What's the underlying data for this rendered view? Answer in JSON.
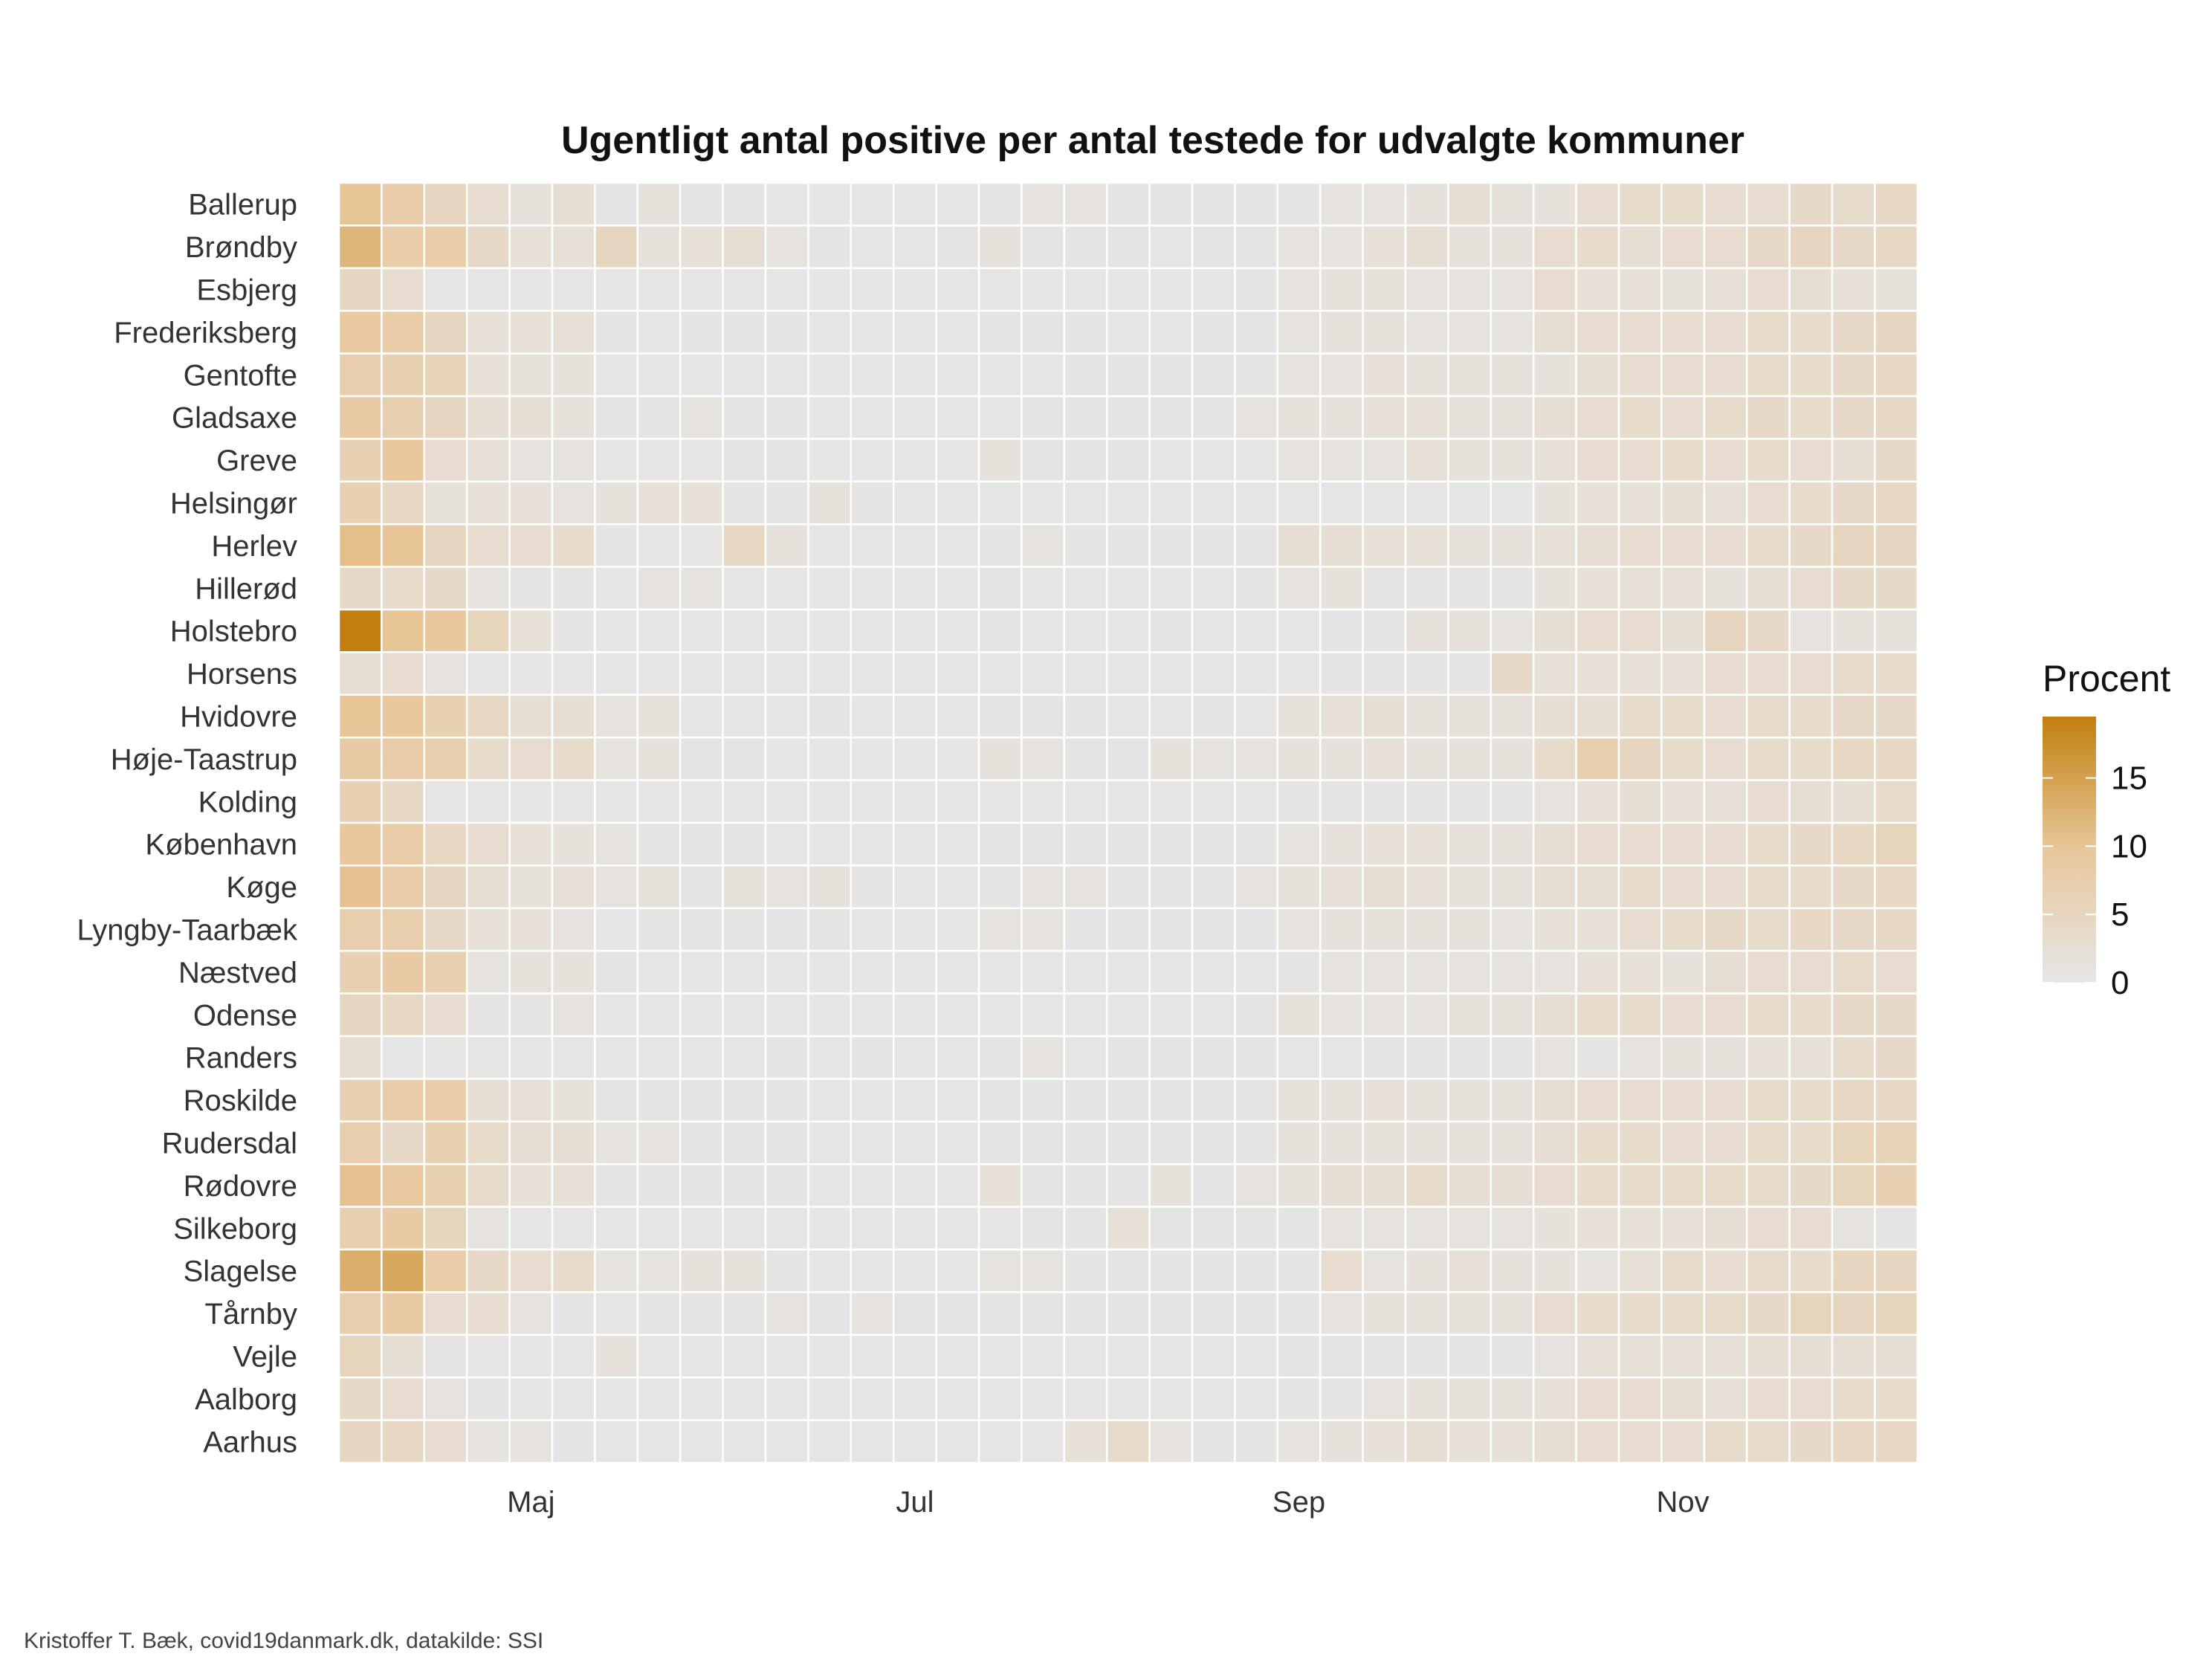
{
  "chart_data": {
    "type": "heatmap",
    "title": "Ugentligt antal positive per antal testede for udvalgte kommuner",
    "caption": "Kristoffer T. Bæk, covid19danmark.dk, datakilde: SSI",
    "x_tick_labels": [
      "Maj",
      "Jul",
      "Sep",
      "Nov"
    ],
    "x_tick_week_index": [
      4,
      13,
      22,
      31
    ],
    "weeks": 37,
    "rows": [
      "Ballerup",
      "Brøndby",
      "Esbjerg",
      "Frederiksberg",
      "Gentofte",
      "Gladsaxe",
      "Greve",
      "Helsingør",
      "Herlev",
      "Hillerød",
      "Holstebro",
      "Horsens",
      "Hvidovre",
      "Høje-Taastrup",
      "Kolding",
      "København",
      "Køge",
      "Lyngby-Taarbæk",
      "Næstved",
      "Odense",
      "Randers",
      "Roskilde",
      "Rudersdal",
      "Rødovre",
      "Silkeborg",
      "Slagelse",
      "Tårnby",
      "Vejle",
      "Aalborg",
      "Aarhus"
    ],
    "legend": {
      "title": "Procent",
      "ticks": [
        "15",
        "10",
        "5",
        "0"
      ],
      "tick_values": [
        15,
        10,
        5,
        0
      ],
      "min": 0,
      "max": 19.5
    },
    "colors": {
      "low": "#e6e6e6",
      "mid": "#e8c79a",
      "high": "#c27f0e",
      "grid": "#ffffff"
    },
    "values": [
      [
        10,
        8,
        5,
        3,
        1.5,
        2.5,
        0.5,
        1.5,
        0.5,
        0.5,
        0.3,
        0.3,
        0.3,
        0.3,
        0.3,
        0.5,
        1,
        1,
        0.5,
        0.5,
        0.5,
        0.5,
        0.5,
        1,
        1,
        1.5,
        2.5,
        1.5,
        1.5,
        3,
        3.5,
        3.5,
        3,
        3,
        4,
        3.5,
        4.5
      ],
      [
        12,
        8,
        8,
        4,
        2,
        2,
        5,
        1.5,
        2,
        2.5,
        1,
        0.5,
        0.3,
        0.3,
        0.5,
        1.5,
        0.5,
        0.5,
        0.5,
        0.3,
        0.5,
        0.5,
        1,
        1,
        2,
        2.5,
        1.5,
        1.5,
        3,
        3.5,
        2.5,
        3,
        3,
        4,
        5,
        4,
        4.5
      ],
      [
        5,
        3,
        0.3,
        0.3,
        0.2,
        0.2,
        0.2,
        0.2,
        0.2,
        0.2,
        0.2,
        0.2,
        0.2,
        0.2,
        0.2,
        0.2,
        0.2,
        0.2,
        0.2,
        0.2,
        0.3,
        0.5,
        1,
        1.5,
        1.5,
        1,
        1,
        1,
        3,
        2,
        2,
        1.5,
        2,
        3,
        2.5,
        2,
        1.5
      ],
      [
        9,
        8,
        5,
        2,
        2,
        2,
        0.5,
        0.3,
        0.5,
        0.5,
        0.5,
        0.3,
        0.3,
        0.3,
        0.3,
        0.5,
        0.5,
        0.5,
        0.3,
        0.3,
        0.5,
        0.5,
        1,
        1.5,
        1.5,
        1,
        1,
        1,
        2.5,
        3,
        3,
        3,
        3,
        3.5,
        3.5,
        4,
        5
      ],
      [
        7.5,
        7,
        6,
        2,
        1.5,
        1.5,
        0.3,
        0.3,
        0.3,
        0.3,
        0.3,
        0.3,
        0.3,
        0.3,
        0.3,
        0.3,
        0.3,
        0.5,
        0.5,
        0.5,
        0.5,
        0.5,
        1,
        1,
        2,
        1.5,
        1.5,
        1.5,
        1.5,
        2.5,
        3,
        3,
        3,
        3.5,
        3.5,
        4,
        4.5
      ],
      [
        8.5,
        7,
        5,
        2.5,
        2.5,
        1.5,
        0.5,
        0.5,
        1,
        0.5,
        0.5,
        0.3,
        0.3,
        0.3,
        0.3,
        0.3,
        0.5,
        0.5,
        0.5,
        0.5,
        0.5,
        1,
        1.5,
        1.5,
        2,
        2,
        1.5,
        1.5,
        2.5,
        3,
        3.5,
        3,
        3.5,
        4,
        3.5,
        4,
        4.5
      ],
      [
        6.5,
        9.5,
        3,
        2,
        1,
        1,
        0.3,
        0.3,
        0.3,
        0.5,
        0.5,
        0.3,
        0.3,
        0.3,
        0.3,
        1.5,
        0.5,
        0.5,
        0.5,
        0.3,
        0.3,
        0.3,
        1,
        1,
        1,
        2,
        1.5,
        1.5,
        2,
        3,
        3,
        3.5,
        3,
        3.5,
        3,
        2.5,
        4
      ],
      [
        6.5,
        4.5,
        1.5,
        2,
        2,
        1,
        1.5,
        2,
        2,
        0.5,
        0.5,
        1.5,
        0.5,
        0.3,
        0.3,
        0.3,
        0.3,
        0.3,
        0.3,
        0.3,
        0.3,
        0.3,
        0.3,
        0.3,
        0.3,
        0.3,
        0.3,
        0.3,
        1.5,
        2,
        2,
        2.5,
        2,
        3,
        3.5,
        4,
        4.5
      ],
      [
        11,
        10,
        5,
        3,
        3,
        3.5,
        0.5,
        0.3,
        0.3,
        4.5,
        1.5,
        0.3,
        0.3,
        0.3,
        0.3,
        0.5,
        1,
        0.5,
        0.5,
        0.5,
        0.5,
        0.5,
        2.5,
        2.5,
        2,
        2,
        1.5,
        1.5,
        2,
        2.5,
        3,
        3,
        3,
        3.5,
        4,
        5,
        5
      ],
      [
        4,
        3.5,
        4,
        1,
        0.5,
        0.5,
        0.3,
        1,
        1,
        0.3,
        0.3,
        0.3,
        0.3,
        0.3,
        0.3,
        0.5,
        0.3,
        0.3,
        0.3,
        0.3,
        0.3,
        0.5,
        1,
        1.5,
        0.5,
        0.5,
        0.5,
        0.5,
        1.5,
        2,
        2,
        2,
        1.5,
        2.5,
        3,
        4,
        4
      ],
      [
        19.5,
        10,
        9.5,
        5.5,
        2,
        0.5,
        0.3,
        0.3,
        0.3,
        0.3,
        0.3,
        0.3,
        0.3,
        0.3,
        0.3,
        0.5,
        0.3,
        0.3,
        0.3,
        0.5,
        0.3,
        0.3,
        0.3,
        0.5,
        0.5,
        1.5,
        1.5,
        1,
        2.5,
        3,
        3,
        2.5,
        5,
        4,
        1,
        1.5,
        1.5
      ],
      [
        2.5,
        3,
        1,
        0.3,
        0.2,
        0.2,
        0.2,
        0.2,
        0.2,
        0.2,
        0.2,
        0.2,
        0.2,
        0.2,
        0.2,
        0.2,
        0.2,
        0.2,
        0.2,
        0.2,
        0.2,
        0.3,
        0.3,
        0.5,
        0.5,
        0.5,
        0.5,
        4,
        2,
        2,
        2,
        2,
        3,
        3,
        3,
        3.5,
        3.5
      ],
      [
        10,
        9.5,
        6.5,
        4.5,
        2.5,
        2.5,
        1,
        1.5,
        0.3,
        0.3,
        0.3,
        0.5,
        0.3,
        0.3,
        0.3,
        0.5,
        0.5,
        0.5,
        0.3,
        0.3,
        0.5,
        0.3,
        1.5,
        2,
        2.5,
        1.5,
        1.5,
        1.5,
        2.5,
        2.5,
        3.5,
        3.5,
        3,
        3.5,
        3.5,
        4,
        4
      ],
      [
        8.5,
        8,
        7.5,
        3.5,
        3,
        3.5,
        1,
        1.5,
        0.5,
        0.5,
        0.3,
        0.3,
        0.3,
        0.3,
        0.3,
        1.5,
        1,
        0.5,
        0.5,
        1.5,
        1,
        1,
        1.5,
        1.5,
        2,
        1.5,
        1.5,
        1.5,
        3.5,
        7,
        5,
        3.5,
        3,
        3.5,
        3.5,
        4.5,
        4.5
      ],
      [
        6.5,
        4.5,
        0.3,
        0.2,
        0.2,
        0.2,
        0.2,
        0.2,
        0.2,
        0.2,
        0.2,
        0.2,
        0.2,
        0.2,
        0.2,
        0.2,
        0.2,
        0.2,
        0.2,
        0.2,
        0.3,
        0.3,
        0.5,
        0.5,
        0.5,
        0.5,
        0.5,
        0.5,
        1,
        2,
        2.5,
        2,
        2,
        3,
        2.5,
        2.5,
        3.5
      ],
      [
        9.5,
        8,
        4.5,
        3,
        2,
        1.5,
        1,
        0.5,
        0.5,
        0.5,
        0.3,
        0.3,
        0.3,
        0.3,
        0.3,
        0.5,
        0.5,
        0.5,
        0.5,
        0.5,
        0.5,
        0.5,
        1,
        1.5,
        2,
        2,
        1.5,
        1.5,
        2.5,
        3,
        3,
        3,
        3,
        3.5,
        4,
        4.5,
        5.5
      ],
      [
        10.5,
        8,
        5,
        2.5,
        1.5,
        2,
        1,
        1.5,
        0.5,
        1.5,
        1,
        1.5,
        0.5,
        0.3,
        0.3,
        0.5,
        1,
        1,
        0.5,
        0.5,
        0.5,
        1,
        1.5,
        2,
        2.5,
        2,
        1.5,
        1.5,
        2.5,
        2.5,
        3.5,
        3,
        3,
        3.5,
        3.5,
        4,
        4.5
      ],
      [
        7.5,
        7.5,
        4,
        2,
        2,
        1,
        0.3,
        0.5,
        0.5,
        0.5,
        0.5,
        0.5,
        0.3,
        0.3,
        0.3,
        1,
        1,
        0.5,
        0.5,
        0.5,
        0.5,
        0.5,
        1,
        1.5,
        1.5,
        1.5,
        1.5,
        1,
        2,
        2,
        3,
        3.5,
        4,
        3.5,
        4.5,
        4,
        4.5
      ],
      [
        6.5,
        8.5,
        7,
        1,
        1.5,
        1.5,
        0.5,
        0.3,
        0.3,
        0.3,
        0.3,
        0.3,
        0.3,
        0.3,
        0.3,
        0.3,
        0.3,
        0.3,
        0.3,
        0.3,
        0.3,
        0.3,
        0.5,
        1,
        1,
        1,
        1,
        1,
        1,
        2,
        2,
        1.5,
        2.5,
        3,
        3,
        3.5,
        3
      ],
      [
        5,
        4.5,
        3,
        0.5,
        0.5,
        1,
        0.3,
        0.3,
        0.3,
        0.3,
        0.3,
        0.3,
        0.3,
        0.3,
        0.3,
        0.3,
        0.3,
        0.3,
        0.3,
        0.3,
        0.3,
        0.5,
        1.5,
        1,
        1,
        1,
        1.5,
        1.5,
        2.5,
        3.5,
        3.5,
        3,
        3,
        3.5,
        3.5,
        4,
        4
      ],
      [
        2.5,
        0.3,
        0.3,
        0.3,
        0.3,
        0.3,
        0.3,
        0.3,
        0.3,
        0.3,
        0.5,
        0.3,
        0.5,
        0.3,
        0.3,
        0.5,
        1,
        0.3,
        0.5,
        0.5,
        0.5,
        0.5,
        0.3,
        0.3,
        0.5,
        0.5,
        0.5,
        0.5,
        1,
        0.5,
        1,
        1.5,
        1.5,
        2,
        2,
        3.5,
        4
      ],
      [
        6.5,
        8,
        8,
        2.5,
        2,
        1.5,
        0.5,
        0.5,
        0.5,
        0.5,
        0.5,
        0.3,
        0.3,
        0.3,
        0.3,
        0.5,
        0.5,
        0.5,
        0.5,
        0.5,
        0.5,
        0.5,
        1.5,
        1.5,
        2,
        1.5,
        1.5,
        1.5,
        2.5,
        3,
        3,
        3,
        3,
        3.5,
        3.5,
        4.5,
        4.5
      ],
      [
        7.5,
        4,
        6.5,
        3.5,
        2.5,
        2.5,
        1,
        1,
        0.5,
        0.5,
        0.5,
        0.3,
        0.3,
        0.3,
        0.3,
        0.5,
        0.5,
        0.5,
        0.5,
        0.5,
        0.5,
        0.5,
        1.5,
        1.5,
        1.5,
        1.5,
        1.5,
        1.5,
        2.5,
        3.5,
        3.5,
        3,
        3,
        3.5,
        3.5,
        5.5,
        6
      ],
      [
        10.5,
        9,
        7,
        3.5,
        2,
        2,
        0.5,
        0.5,
        0.5,
        0.5,
        0.5,
        0.3,
        0.3,
        0.3,
        0.3,
        2,
        0.5,
        0.5,
        0.5,
        1.5,
        0.5,
        1,
        1.5,
        2.5,
        2.5,
        3.5,
        2.5,
        2.5,
        3,
        3.5,
        3.5,
        3.5,
        3.5,
        3.5,
        4,
        5.5,
        6.5
      ],
      [
        7,
        8.5,
        5.5,
        1,
        0.2,
        0.2,
        0.2,
        0.2,
        0.2,
        0.3,
        0.3,
        0.3,
        0.3,
        0.3,
        0.3,
        0.3,
        0.5,
        0.5,
        2,
        0.5,
        0.5,
        0.5,
        0.5,
        1,
        1,
        1,
        1,
        1,
        1.5,
        2,
        2,
        2,
        2.5,
        3,
        3,
        1,
        0.5
      ],
      [
        13,
        14,
        8,
        4,
        3,
        3.5,
        1,
        1,
        1.5,
        1.5,
        0.5,
        0.3,
        0.3,
        0.3,
        0.3,
        1,
        1,
        0.5,
        0.5,
        0.5,
        0.5,
        0.5,
        0.5,
        3,
        1,
        1.5,
        2,
        1.5,
        1.5,
        1,
        2,
        3.5,
        3,
        3.5,
        3.5,
        5,
        5
      ],
      [
        7.5,
        8.5,
        3,
        3,
        1,
        0.5,
        0.3,
        0.5,
        0.5,
        0.5,
        1,
        0.5,
        1,
        0.5,
        0.5,
        0.5,
        0.5,
        0.5,
        0.5,
        0.5,
        0.5,
        0.5,
        0.5,
        1,
        1.5,
        1.5,
        1.5,
        1.5,
        3,
        3.5,
        3.5,
        3.5,
        3.5,
        4,
        5.5,
        5,
        5.5
      ],
      [
        5.5,
        2.5,
        0.5,
        0.3,
        0.3,
        0.3,
        1.5,
        0.3,
        0.3,
        0.3,
        0.3,
        0.3,
        0.3,
        0.3,
        0.3,
        0.3,
        0.3,
        0.3,
        0.3,
        0.3,
        0.3,
        0.3,
        0.5,
        0.5,
        0.5,
        0.5,
        0.5,
        0.5,
        1,
        2,
        2,
        2,
        2,
        2.5,
        2.5,
        2.5,
        2.5
      ],
      [
        4,
        3,
        1,
        0.5,
        0.3,
        0.3,
        0.3,
        0.3,
        0.3,
        0.3,
        0.3,
        0.3,
        0.3,
        0.3,
        0.3,
        0.3,
        0.3,
        0.3,
        0.3,
        0.3,
        0.3,
        0.3,
        0.5,
        0.5,
        1,
        1.5,
        1.5,
        1.5,
        2,
        3,
        3,
        2.5,
        2,
        3,
        3,
        3.5,
        3.5
      ],
      [
        5,
        4.5,
        3,
        1,
        1,
        0.5,
        0.3,
        0.3,
        0.3,
        0.3,
        0.3,
        0.3,
        0.3,
        0.3,
        0.3,
        0.3,
        0.3,
        2,
        3.5,
        1,
        0.5,
        0.5,
        1,
        1.5,
        2,
        2.5,
        2,
        2,
        2.5,
        3,
        3,
        3,
        3.5,
        3.5,
        4,
        4.5,
        4.5
      ]
    ]
  }
}
